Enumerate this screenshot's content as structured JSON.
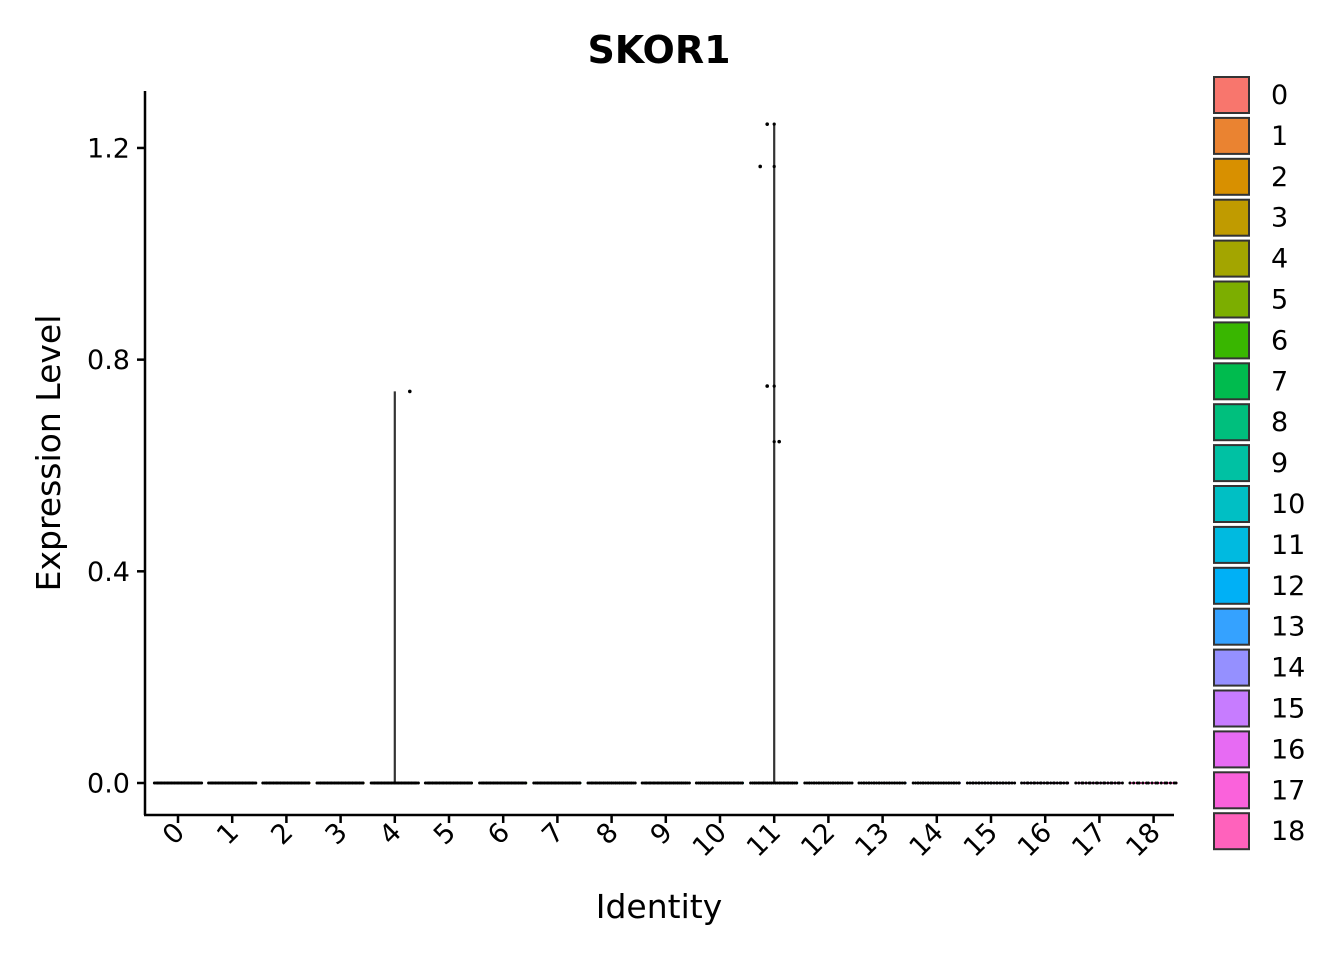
{
  "chart_data": {
    "type": "violin",
    "title": "SKOR1",
    "xlabel": "Identity",
    "ylabel": "Expression Level",
    "categories": [
      "0",
      "1",
      "2",
      "3",
      "4",
      "5",
      "6",
      "7",
      "8",
      "9",
      "10",
      "11",
      "12",
      "13",
      "14",
      "15",
      "16",
      "17",
      "18"
    ],
    "ylim": [
      -0.06,
      1.3
    ],
    "yticks": [
      0.0,
      0.4,
      0.8,
      1.2
    ],
    "ytick_labels": [
      "0.0",
      "0.4",
      "0.8",
      "1.2"
    ],
    "grid": false,
    "legend_position": "right",
    "colors": [
      "#F8766D",
      "#EA8331",
      "#D89000",
      "#C09B00",
      "#A3A500",
      "#7CAE00",
      "#39B600",
      "#00BB4E",
      "#00BF7D",
      "#00C1A3",
      "#00BFC4",
      "#00BAE0",
      "#00B0F6",
      "#35A2FF",
      "#9590FF",
      "#C77CFF",
      "#E76BF3",
      "#FA62DB",
      "#FF62BC"
    ],
    "max_expression": [
      0,
      0,
      0,
      0,
      0.74,
      0,
      0,
      0,
      0,
      0,
      0,
      1.245,
      0,
      0,
      0,
      0,
      0,
      0,
      0
    ],
    "nonzero_points": [
      {
        "category": "4",
        "value": 0.74
      },
      {
        "category": "11",
        "value": 1.245
      },
      {
        "category": "11",
        "value": 1.165
      },
      {
        "category": "11",
        "value": 0.75
      },
      {
        "category": "11",
        "value": 0.645
      }
    ]
  }
}
